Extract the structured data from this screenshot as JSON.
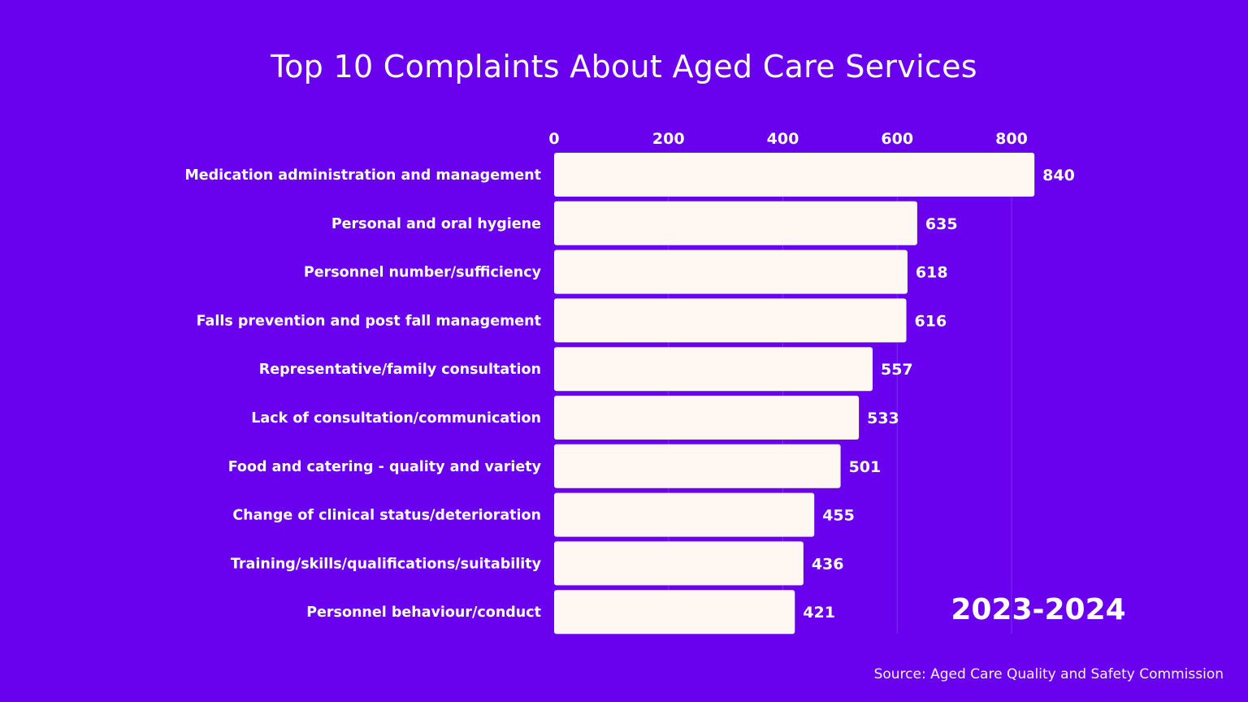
{
  "page": {
    "title": "Top 10 Complaints About Aged Care Services",
    "period": "2023-2024",
    "source": "Source: Aged Care Quality and Safety Commission"
  },
  "colors": {
    "background": "#6900ee",
    "bar": "#fff8f2",
    "text": "#ffffff",
    "grid": "#7d2cf5"
  },
  "chart_data": {
    "type": "bar",
    "orientation": "horizontal",
    "title": "Top 10 Complaints About Aged Care Services",
    "categories": [
      "Medication administration and management",
      "Personal and oral hygiene",
      "Personnel number/sufficiency",
      "Falls prevention and post fall management",
      "Representative/family consultation",
      "Lack of consultation/communication",
      "Food and catering - quality and variety",
      "Change of clinical status/deterioration",
      "Training/skills/qualifications/suitability",
      "Personnel behaviour/conduct"
    ],
    "values": [
      840,
      635,
      618,
      616,
      557,
      533,
      501,
      455,
      436,
      421
    ],
    "x_ticks": [
      0,
      200,
      400,
      600,
      800
    ],
    "xlim": [
      0,
      840
    ],
    "xlabel": "",
    "ylabel": "",
    "grid": true,
    "axis_position": "top",
    "legend": false
  }
}
